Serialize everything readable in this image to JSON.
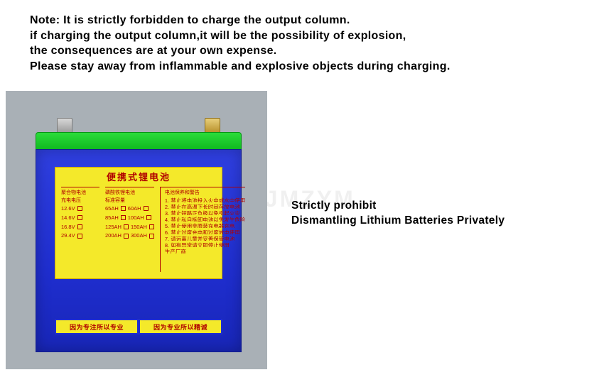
{
  "note": {
    "line1": "Note: It is strictly forbidden to charge the output column.",
    "line2": "if charging the output column,it will be the possibility of explosion,",
    "line3": "the consequences are at your own expense.",
    "line4": "Please stay away from inflammable and explosive objects during charging."
  },
  "side": {
    "line1": "Strictly prohibit",
    "line2": "Dismantling Lithium Batteries Privately"
  },
  "label": {
    "title": "便携式锂电池",
    "col1_head": "聚合物电池",
    "col2_head": "磷酸铁锂电池",
    "col3_head": "电池保养和警告",
    "sub1": "充电电压",
    "sub2": "标准容量",
    "v1": "12.6V",
    "c1": "65AH",
    "c1b": "60AH",
    "v2": "14.6V",
    "c2": "85AH",
    "c2b": "100AH",
    "v3": "16.8V",
    "c3": "125AH",
    "c3b": "150AH",
    "v4": "29.4V",
    "c4": "200AH",
    "c4b": "300AH",
    "w1": "1. 禁止将电池投入火中或水中使用",
    "w2": "2. 禁止在高温下长时间存放电池",
    "w3": "3. 禁止短路正负极以免引起火灾",
    "w4": "4. 禁止私自拆卸电池以免发生危险",
    "w5": "5. 禁止使用非原装充电器充电",
    "w6": "6. 禁止过度充电和过度放电使用",
    "w7": "7. 请远离儿童并妥善保管电池",
    "w8": "8. 如有异常请立即停止使用",
    "foot": "生产厂商"
  },
  "strip": {
    "left": "因为专注所以专业",
    "right": "因为专业所以精诚"
  },
  "colors": {
    "panel_bg": "#a9b0b6",
    "battery_top": "#17c927",
    "battery_body": "#2433d4",
    "label_bg": "#f4e92a",
    "label_text": "#b00000",
    "terminal_silver": "#b8b8b8",
    "terminal_brass": "#c9a24a"
  },
  "watermark": "ZJMZYM"
}
